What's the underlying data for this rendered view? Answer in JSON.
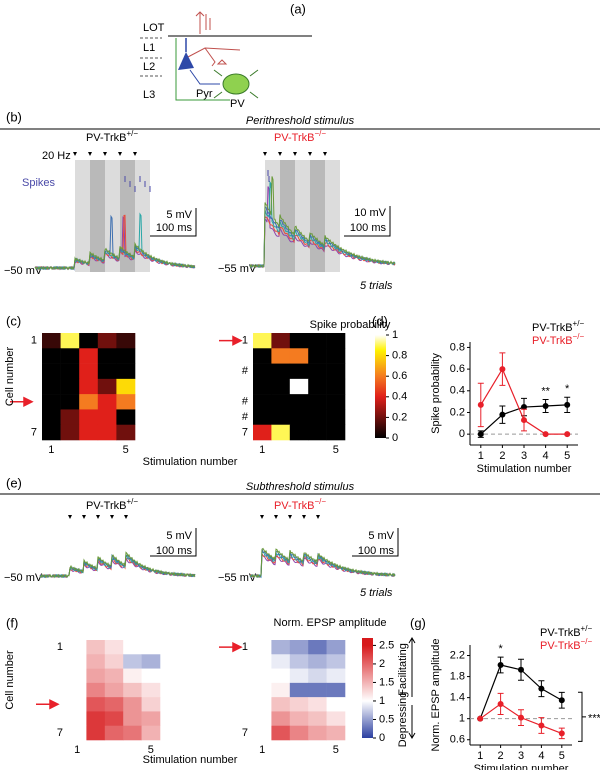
{
  "panel_labels": [
    "(a)",
    "(b)",
    "(c)",
    "(d)",
    "(e)",
    "(f)",
    "(g)"
  ],
  "diagram": {
    "lot": "LOT",
    "l1": "L1",
    "l2": "L2",
    "l3": "L3",
    "pyr": "Pyr",
    "pv": "PV"
  },
  "genotypes": [
    {
      "name": "PV-TrkB",
      "superscript": "+/−"
    },
    {
      "name": "PV-TrkB",
      "superscript": "−/−"
    }
  ],
  "perithreshold": {
    "title": "Perithreshold stimulus",
    "frequency": "20 Hz",
    "spikes": "Spikes",
    "left": {
      "scale_v": "5 mV",
      "scale_t": "100 ms",
      "baseline": "−50 mV"
    },
    "right": {
      "scale_v": "10 mV",
      "scale_t": "100 ms",
      "baseline": "−55 mV",
      "trials": "5 trials"
    }
  },
  "subthreshold": {
    "title": "Subthreshold stimulus",
    "left": {
      "scale_v": "5 mV",
      "scale_t": "100 ms",
      "baseline": "−50 mV"
    },
    "right": {
      "scale_v": "5 mV",
      "scale_t": "100 ms",
      "baseline": "−55 mV",
      "trials": "5 trials"
    }
  },
  "chart_data": [
    {
      "type": "heatmap",
      "ylabel": "Cell number",
      "xlabel": "Stimulation number",
      "row_labels": [
        "1",
        null,
        null,
        null,
        null,
        null,
        "7"
      ],
      "col_labels": [
        "1",
        null,
        null,
        null,
        "5"
      ],
      "arrow_row": 4,
      "colormap": [
        [
          0,
          "#000000"
        ],
        [
          0.4,
          "#e0201a"
        ],
        [
          0.6,
          "#f47b20"
        ],
        [
          0.85,
          "#fff200"
        ],
        [
          1,
          "#ffffff"
        ]
      ],
      "values": [
        [
          0.1,
          0.9,
          0,
          0.2,
          0.1
        ],
        [
          0,
          0,
          0.4,
          0,
          0
        ],
        [
          0,
          0,
          0.4,
          0,
          0
        ],
        [
          0,
          0,
          0.4,
          0.2,
          0.8
        ],
        [
          0,
          0,
          0.6,
          0.4,
          0.6
        ],
        [
          0,
          0.2,
          0.4,
          0.4,
          0
        ],
        [
          0,
          0.2,
          0.4,
          0.4,
          0.2
        ]
      ]
    },
    {
      "type": "heatmap",
      "row_labels": [
        "1",
        null,
        "#",
        null,
        "#",
        "#",
        "7"
      ],
      "col_labels": [
        "1",
        null,
        null,
        null,
        "5"
      ],
      "arrow_row": 0,
      "colormap": [
        [
          0,
          "#000000"
        ],
        [
          0.4,
          "#e0201a"
        ],
        [
          0.6,
          "#f47b20"
        ],
        [
          0.85,
          "#fff200"
        ],
        [
          1,
          "#ffffff"
        ]
      ],
      "values": [
        [
          0.9,
          0.2,
          0,
          0,
          0
        ],
        [
          0,
          0.6,
          0.6,
          0,
          0
        ],
        [
          0,
          0,
          0,
          0,
          0
        ],
        [
          0,
          0,
          1,
          0,
          0
        ],
        [
          0,
          0,
          0,
          0,
          0
        ],
        [
          0,
          0,
          0,
          0,
          0
        ],
        [
          0.4,
          0.9,
          0,
          0,
          0
        ]
      ],
      "colorbar": {
        "label": "Spike probability",
        "lim": [
          0,
          1
        ],
        "ticks": [
          0,
          0.2,
          0.4,
          0.6,
          0.8,
          1
        ]
      }
    },
    {
      "type": "line",
      "xlabel": "Stimulation number",
      "ylabel": "Spike probability",
      "x": [
        1,
        2,
        3,
        4,
        5
      ],
      "xticks": [
        1,
        2,
        3,
        4,
        5
      ],
      "xlim": [
        0.5,
        5.5
      ],
      "ylim": [
        -0.1,
        0.85
      ],
      "yticks": [
        0,
        0.2,
        0.4,
        0.6,
        0.8
      ],
      "refline": 0,
      "series": [
        {
          "name": "PV-TrkB",
          "superscript": "+/−",
          "color": "#000000",
          "values": [
            0,
            0.18,
            0.25,
            0.26,
            0.27
          ],
          "errors": [
            0.03,
            0.08,
            0.08,
            0.06,
            0.07
          ]
        },
        {
          "name": "PV-TrkB",
          "superscript": "−/−",
          "color": "#e8202a",
          "values": [
            0.27,
            0.6,
            0.13,
            0,
            0
          ],
          "errors": [
            0.2,
            0.15,
            0.1,
            0,
            0
          ]
        }
      ],
      "annotations": [
        {
          "text": "**",
          "x": 4
        },
        {
          "text": "*",
          "x": 5
        }
      ]
    },
    {
      "type": "heatmap",
      "ylabel": "Cell number",
      "xlabel": "Stimulation number",
      "row_labels": [
        "1",
        null,
        null,
        null,
        null,
        null,
        "7"
      ],
      "col_labels": [
        "1",
        null,
        null,
        null,
        "5"
      ],
      "arrow_row": 4,
      "colormap": [
        [
          0,
          "#2b3fa0"
        ],
        [
          1,
          "#ffffff"
        ],
        [
          2.5,
          "#d7191c"
        ]
      ],
      "values": [
        [
          1,
          1.4,
          1.2,
          1.0,
          1.0
        ],
        [
          1,
          1.5,
          1.3,
          0.7,
          0.6
        ],
        [
          1,
          1.6,
          1.5,
          1.1,
          1.0
        ],
        [
          1,
          1.8,
          1.6,
          1.4,
          1.2
        ],
        [
          1,
          2.1,
          2.0,
          1.7,
          1.3
        ],
        [
          1,
          2.3,
          2.2,
          1.7,
          1.6
        ],
        [
          1,
          2.3,
          2.0,
          1.9,
          1.5
        ]
      ]
    },
    {
      "type": "heatmap",
      "row_labels": [
        "1",
        null,
        null,
        null,
        null,
        null,
        "7"
      ],
      "col_labels": [
        "1",
        null,
        null,
        null,
        "5"
      ],
      "arrow_row": 0,
      "colormap": [
        [
          0,
          "#2b3fa0"
        ],
        [
          1,
          "#ffffff"
        ],
        [
          2.5,
          "#d7191c"
        ]
      ],
      "values": [
        [
          1,
          0.6,
          0.5,
          0.3,
          0.5
        ],
        [
          1,
          0.9,
          0.7,
          0.6,
          0.7
        ],
        [
          1,
          1.0,
          0.9,
          0.8,
          0.9
        ],
        [
          1,
          1.1,
          0.3,
          0.3,
          0.3
        ],
        [
          1,
          1.4,
          1.3,
          1.2,
          1.0
        ],
        [
          1,
          1.7,
          1.5,
          1.4,
          1.2
        ],
        [
          1,
          2.1,
          1.8,
          1.6,
          1.5
        ]
      ],
      "colorbar": {
        "label": "Norm. EPSP amplitude",
        "lim": [
          0,
          2.7
        ],
        "ticks": [
          0,
          0.5,
          1,
          1.5,
          2,
          2.5
        ],
        "directions": [
          "Facilitating",
          "Depressing"
        ]
      }
    },
    {
      "type": "line",
      "xlabel": "Stimulation number",
      "ylabel": "Norm. EPSP amplitude",
      "x": [
        1,
        2,
        3,
        4,
        5
      ],
      "xticks": [
        1,
        2,
        3,
        4,
        5
      ],
      "xlim": [
        0.5,
        5.5
      ],
      "ylim": [
        0.5,
        2.4
      ],
      "yticks": [
        0.6,
        1,
        1.4,
        1.8,
        2.2
      ],
      "refline": 1,
      "series": [
        {
          "name": "PV-TrkB",
          "superscript": "+/−",
          "color": "#000000",
          "values": [
            1,
            2.02,
            1.93,
            1.57,
            1.35
          ],
          "errors": [
            0,
            0.15,
            0.2,
            0.15,
            0.15
          ]
        },
        {
          "name": "PV-TrkB",
          "superscript": "−/−",
          "color": "#e8202a",
          "values": [
            1,
            1.28,
            1.02,
            0.87,
            0.72
          ],
          "errors": [
            0,
            0.2,
            0.15,
            0.15,
            0.1
          ]
        }
      ],
      "annotations": [
        {
          "text": "*",
          "x": 2
        },
        {
          "text": "***",
          "bracket": true
        }
      ]
    }
  ]
}
